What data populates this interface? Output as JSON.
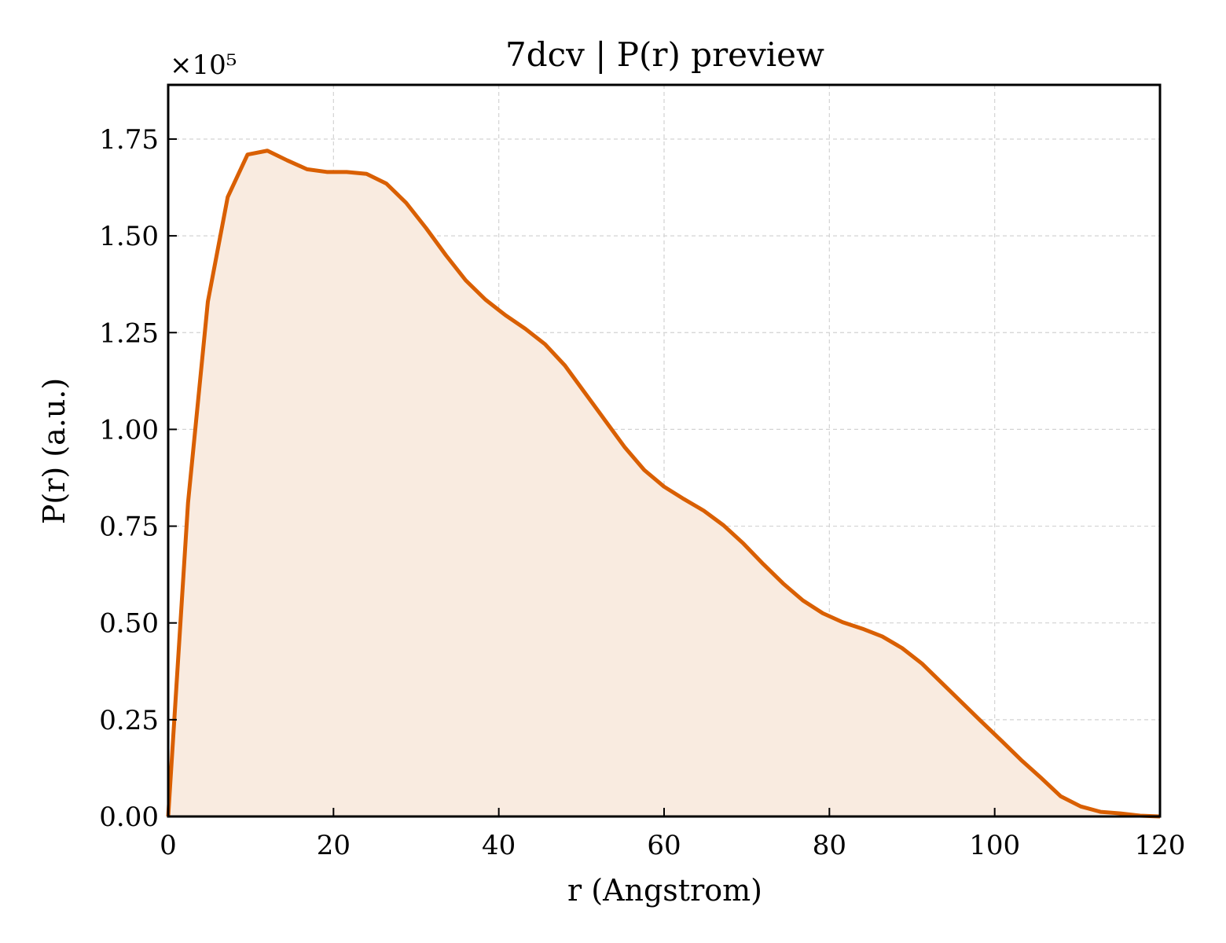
{
  "chart_data": {
    "type": "area",
    "title": "7dcv | P(r) preview",
    "xlabel": "r (Angstrom)",
    "ylabel": "P(r) (a.u.)",
    "y_multiplier_label": "×10⁵",
    "y_scale_factor": 100000,
    "xlim": [
      0,
      120
    ],
    "ylim": [
      0,
      1.89
    ],
    "x_ticks": [
      0,
      20,
      40,
      60,
      80,
      100,
      120
    ],
    "x_tick_labels": [
      "0",
      "20",
      "40",
      "60",
      "80",
      "100",
      "120"
    ],
    "y_ticks": [
      0,
      0.25,
      0.5,
      0.75,
      1.0,
      1.25,
      1.5,
      1.75
    ],
    "y_tick_labels": [
      "0.00",
      "0.25",
      "0.50",
      "0.75",
      "1.00",
      "1.25",
      "1.50",
      "1.75"
    ],
    "grid": true,
    "line_color": "#d95f02",
    "fill_color": "#f9ebe0",
    "series": [
      {
        "x": [
          0,
          2.4,
          4.8,
          7.2,
          9.6,
          12.0,
          14.4,
          16.8,
          19.2,
          21.6,
          24.0,
          26.4,
          28.8,
          31.2,
          33.6,
          36.0,
          38.4,
          40.8,
          43.2,
          45.6,
          48.0,
          50.4,
          52.8,
          55.2,
          57.6,
          60.0,
          62.4,
          64.8,
          67.2,
          69.6,
          72.0,
          74.4,
          76.8,
          79.2,
          81.6,
          84.0,
          86.4,
          88.8,
          91.2,
          93.6,
          96.0,
          98.4,
          100.8,
          103.2,
          105.6,
          108.0,
          110.4,
          112.8,
          115.2,
          117.6,
          120.0
        ],
        "y": [
          0.0,
          0.81,
          1.33,
          1.6,
          1.71,
          1.72,
          1.695,
          1.672,
          1.665,
          1.665,
          1.66,
          1.635,
          1.585,
          1.52,
          1.45,
          1.385,
          1.335,
          1.295,
          1.26,
          1.22,
          1.165,
          1.095,
          1.025,
          0.955,
          0.895,
          0.852,
          0.82,
          0.79,
          0.752,
          0.705,
          0.652,
          0.602,
          0.558,
          0.525,
          0.502,
          0.485,
          0.465,
          0.435,
          0.395,
          0.345,
          0.295,
          0.245,
          0.196,
          0.146,
          0.1,
          0.052,
          0.026,
          0.012,
          0.008,
          0.002,
          0.0
        ]
      }
    ]
  }
}
